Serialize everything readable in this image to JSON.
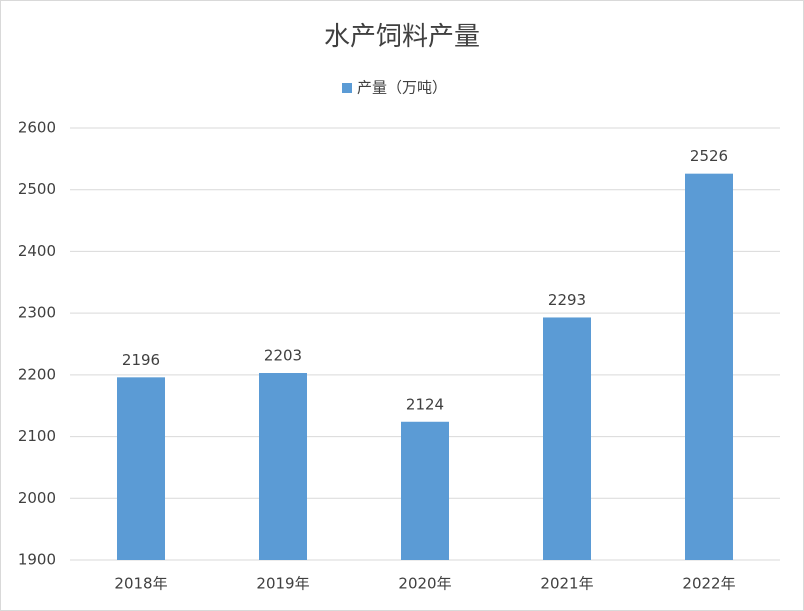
{
  "chart_data": {
    "type": "bar",
    "title": "水产饲料产量",
    "categories": [
      "2018年",
      "2019年",
      "2020年",
      "2021年",
      "2022年"
    ],
    "series": [
      {
        "name": "产量（万吨）",
        "color": "#5b9bd5",
        "values": [
          2196,
          2203,
          2124,
          2293,
          2526
        ]
      }
    ],
    "ylim": [
      1900,
      2600
    ],
    "yticks": [
      1900,
      2000,
      2100,
      2200,
      2300,
      2400,
      2500,
      2600
    ],
    "grid": true,
    "legend": "top"
  }
}
